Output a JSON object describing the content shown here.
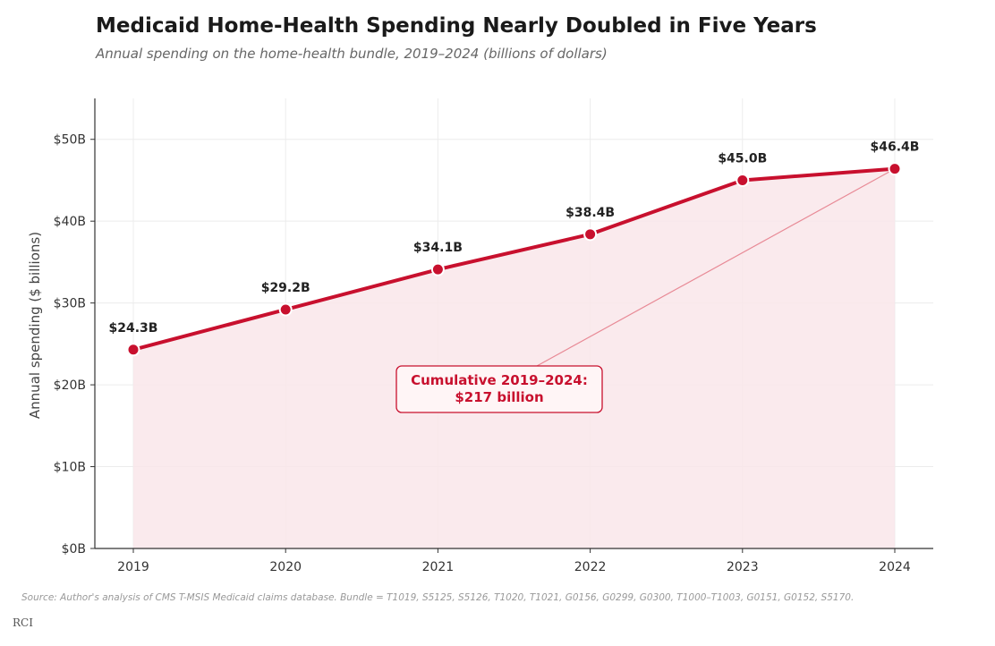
{
  "chart_data": {
    "type": "line",
    "title": "Medicaid Home-Health Spending Nearly Doubled in Five Years",
    "subtitle": "Annual spending on the home-health bundle, 2019–2024 (billions of dollars)",
    "xlabel": "",
    "ylabel": "Annual spending ($ billions)",
    "categories": [
      "2019",
      "2020",
      "2021",
      "2022",
      "2023",
      "2024"
    ],
    "values": [
      24.3,
      29.2,
      34.1,
      38.4,
      45.0,
      46.4
    ],
    "data_labels": [
      "$24.3B",
      "$29.2B",
      "$34.1B",
      "$38.4B",
      "$45.0B",
      "$46.4B"
    ],
    "ylim": [
      0,
      55
    ],
    "yticks": [
      0,
      10,
      20,
      30,
      40,
      50
    ],
    "ytick_labels": [
      "$0B",
      "$10B",
      "$20B",
      "$30B",
      "$40B",
      "$50B"
    ],
    "grid": true,
    "area_fill": true,
    "line_color": "#c8102e",
    "fill_color": "#f9e6ea",
    "annotation": {
      "line1": "Cumulative 2019–2024:",
      "line2": "$217 billion",
      "points_to": "2024"
    }
  },
  "source": "Source: Author's analysis of CMS T-MSIS Medicaid claims database. Bundle = T1019, S5125, S5126, T1020, T1021, G0156, G0299, G0300, T1000–T1003, G0151, G0152, S5170.",
  "brand": "RCI"
}
